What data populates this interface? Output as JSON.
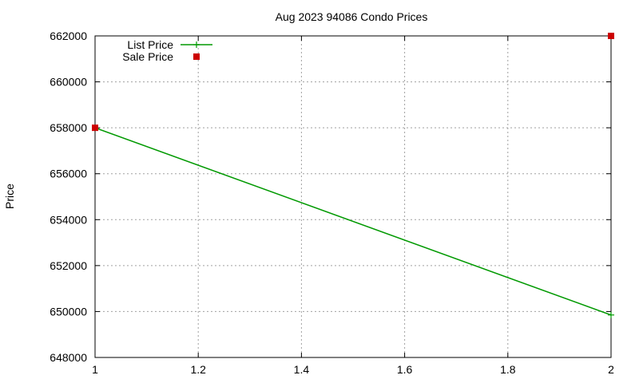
{
  "chart_data": {
    "type": "line",
    "title": "Aug 2023 94086 Condo Prices",
    "xlabel": "",
    "ylabel": "Price",
    "xlim": [
      1,
      2
    ],
    "ylim": [
      648000,
      662000
    ],
    "xticks": [
      "1",
      "1.2",
      "1.4",
      "1.6",
      "1.8",
      "2"
    ],
    "yticks": [
      "648000",
      "650000",
      "652000",
      "654000",
      "656000",
      "658000",
      "660000",
      "662000"
    ],
    "grid": true,
    "legend_position": "top-left",
    "series": [
      {
        "name": "List Price",
        "style": "line-with-cross-markers",
        "color": "#009900",
        "points": [
          [
            1,
            658000
          ],
          [
            2,
            649850
          ]
        ]
      },
      {
        "name": "Sale Price",
        "style": "square-markers",
        "color": "#cc0000",
        "points": [
          [
            1,
            658000
          ],
          [
            2,
            662000
          ]
        ]
      }
    ]
  }
}
